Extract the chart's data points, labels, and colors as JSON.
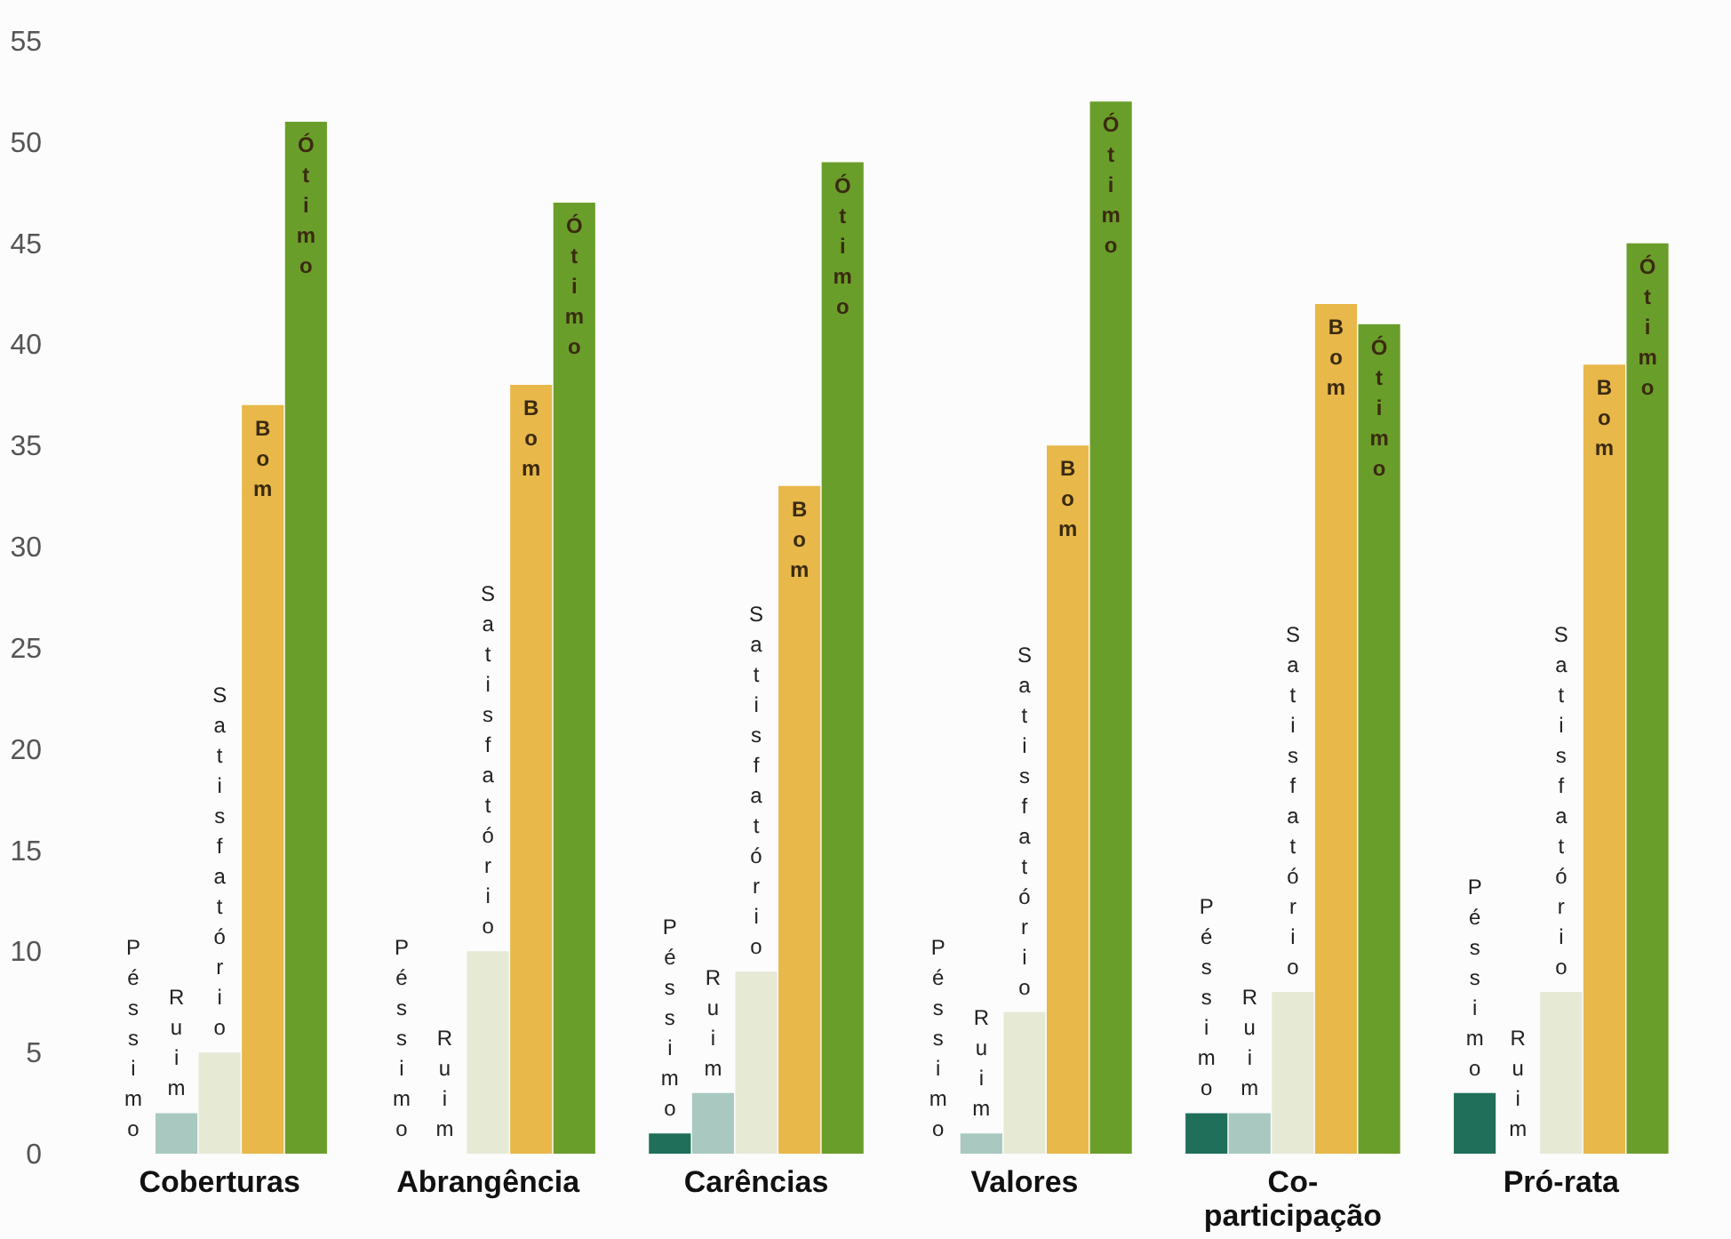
{
  "chart_data": {
    "type": "bar",
    "categories": [
      "Coberturas",
      "Abrangência",
      "Carências",
      "Valores",
      "Co-participação",
      "Pró-rata"
    ],
    "series": [
      {
        "name": "Péssimo",
        "color": "#1f6f5a",
        "values": [
          0,
          0,
          1,
          0,
          2,
          3
        ]
      },
      {
        "name": "Ruim",
        "color": "#a8c8c0",
        "values": [
          2,
          0,
          3,
          1,
          2,
          0
        ]
      },
      {
        "name": "Satisfatório",
        "color": "#e6e9d4",
        "values": [
          5,
          10,
          9,
          7,
          8,
          8
        ]
      },
      {
        "name": "Bom",
        "color": "#e8b84a",
        "values": [
          37,
          38,
          33,
          35,
          42,
          39
        ]
      },
      {
        "name": "Ótimo",
        "color": "#6a9e2a",
        "values": [
          51,
          47,
          49,
          52,
          41,
          45
        ]
      }
    ],
    "ylim": [
      0,
      55
    ],
    "yticks": [
      0,
      5,
      10,
      15,
      20,
      25,
      30,
      35,
      40,
      45,
      50,
      55
    ],
    "grid": false,
    "legend": false
  }
}
